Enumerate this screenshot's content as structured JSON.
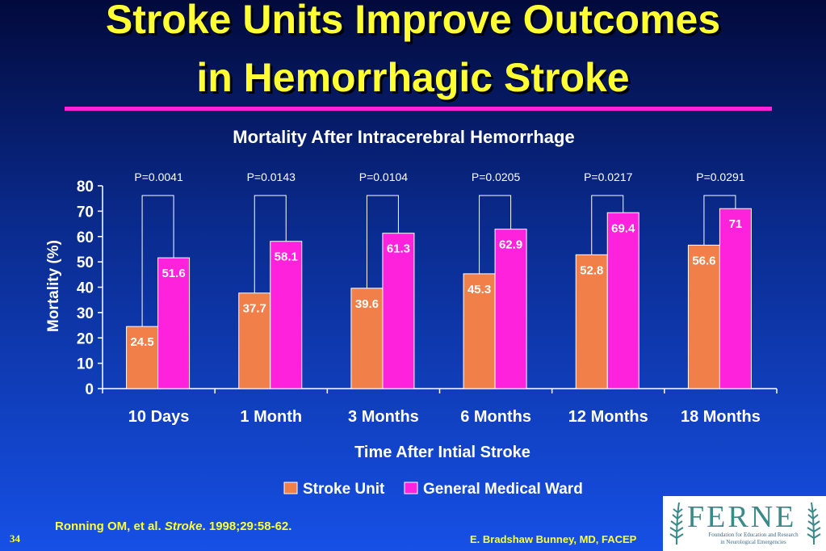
{
  "slide": {
    "title_line1": "Stroke Units Improve Outcomes",
    "title_line2": "in Hemorrhagic Stroke",
    "citation_prefix": "Ronning OM, et al. ",
    "citation_journal": "Stroke",
    "citation_suffix": ". 1998;29:58-62.",
    "page_number": "34",
    "author": "E. Bradshaw Bunney, MD, FACEP",
    "logo_text": "FERNE",
    "logo_subtitle_line1": "Foundation for Education and Research",
    "logo_subtitle_line2": "in Neurological Emergencies"
  },
  "colors": {
    "stroke_unit": "#f07f4a",
    "general_ward": "#ff22dd",
    "title": "#ffff33",
    "text": "#ffffff"
  },
  "chart_data": {
    "type": "bar",
    "title": "Mortality After Intracerebral Hemorrhage",
    "xlabel": "Time After Intial Stroke",
    "ylabel": "Mortality (%)",
    "ylim": [
      0,
      80
    ],
    "yticks": [
      0,
      10,
      20,
      30,
      40,
      50,
      60,
      70,
      80
    ],
    "categories": [
      "10 Days",
      "1 Month",
      "3 Months",
      "6 Months",
      "12 Months",
      "18 Months"
    ],
    "series": [
      {
        "name": "Stroke Unit",
        "values": [
          24.5,
          37.7,
          39.6,
          45.3,
          52.8,
          56.6
        ],
        "labels": [
          "24.5",
          "37.7",
          "39.6",
          "45.3",
          "52.8",
          "56.6"
        ]
      },
      {
        "name": "General Medical Ward",
        "values": [
          51.6,
          58.1,
          61.3,
          62.9,
          69.4,
          71
        ],
        "labels": [
          "51.6",
          "58.1",
          "61.3",
          "62.9",
          "69.4",
          "71"
        ]
      }
    ],
    "p_values": [
      "P=0.0041",
      "P=0.0143",
      "P=0.0104",
      "P=0.0205",
      "P=0.0217",
      "P=0.0291"
    ],
    "legend_position": "bottom",
    "grid": false
  }
}
